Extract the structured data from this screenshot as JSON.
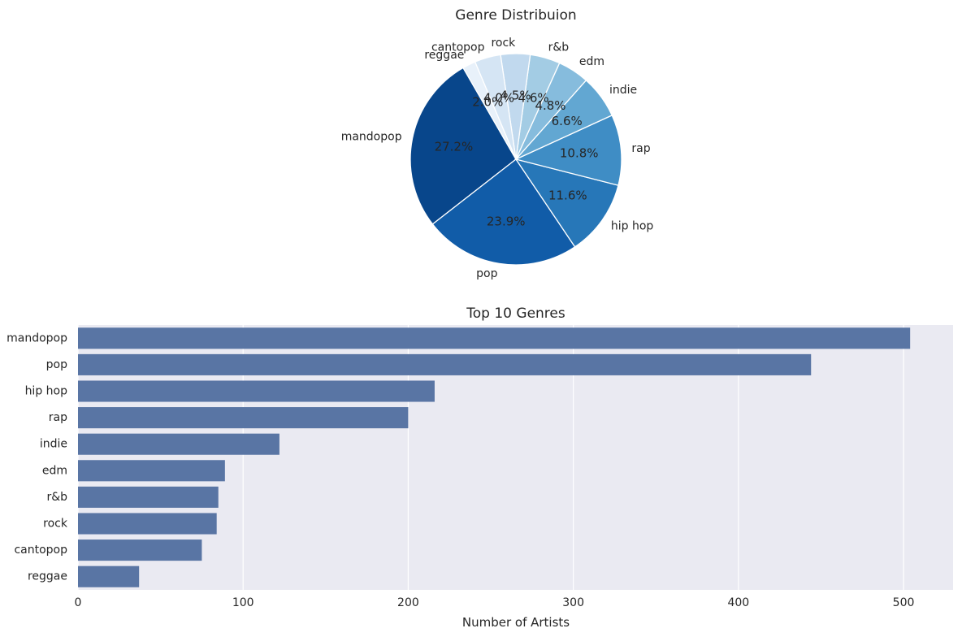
{
  "chart_data": [
    {
      "type": "pie",
      "title": "Genre Distribuion",
      "categories": [
        "mandopop",
        "pop",
        "hip hop",
        "rap",
        "indie",
        "edm",
        "r&b",
        "rock",
        "cantopop",
        "reggae"
      ],
      "values": [
        27.2,
        23.9,
        11.6,
        10.8,
        6.6,
        4.8,
        4.6,
        4.5,
        4.0,
        2.0
      ],
      "value_labels": [
        "27.2%",
        "23.9%",
        "11.6%",
        "10.8%",
        "6.6%",
        "4.8%",
        "4.6%",
        "4.5%",
        "4.0%",
        "2.0%"
      ],
      "start_angle_deg": 120,
      "direction": "counterclockwise",
      "colors": [
        "#08468b",
        "#115ca8",
        "#2777b8",
        "#3f8dc5",
        "#62a7d2",
        "#86bcdd",
        "#a3cce4",
        "#c1d9ee",
        "#d5e5f4",
        "#e8f1fa"
      ]
    },
    {
      "type": "bar",
      "orientation": "horizontal",
      "title": "Top 10 Genres",
      "xlabel": "Number of Artists",
      "ylabel": "",
      "categories": [
        "mandopop",
        "pop",
        "hip hop",
        "rap",
        "indie",
        "edm",
        "r&b",
        "rock",
        "cantopop",
        "reggae"
      ],
      "values": [
        504,
        444,
        216,
        200,
        122,
        89,
        85,
        84,
        75,
        37
      ],
      "xlim": [
        0,
        530
      ],
      "xticks": [
        0,
        100,
        200,
        300,
        400,
        500
      ],
      "grid": true,
      "bar_color": "#5975a4",
      "background": "#eaeaf2"
    }
  ]
}
